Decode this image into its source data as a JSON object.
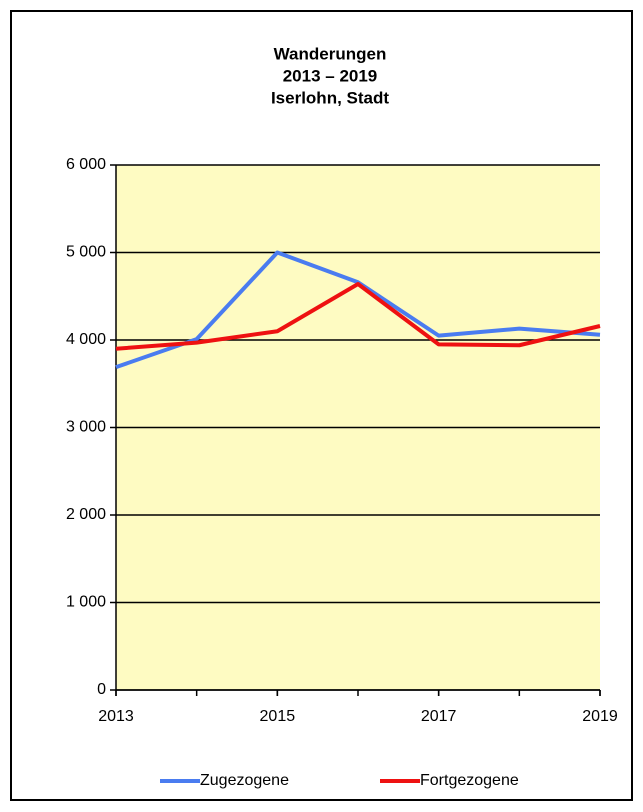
{
  "chart_data": {
    "type": "line",
    "title": [
      "Wanderungen",
      "2013 – 2019",
      "Iserlohn, Stadt"
    ],
    "x": [
      2013,
      2014,
      2015,
      2016,
      2017,
      2018,
      2019
    ],
    "series": [
      {
        "name": "Zugezogene",
        "color": "#4a7cf0",
        "values": [
          3690,
          4010,
          5000,
          4660,
          4050,
          4130,
          4060
        ]
      },
      {
        "name": "Fortgezogene",
        "color": "#ee1111",
        "values": [
          3900,
          3970,
          4100,
          4640,
          3950,
          3940,
          4160
        ]
      }
    ],
    "xlim": [
      2013,
      2019
    ],
    "xticks": [
      2013,
      2015,
      2017,
      2019
    ],
    "ylim": [
      0,
      6000
    ],
    "yticks": [
      0,
      {
        "value": 1000,
        "label": "1 000"
      },
      {
        "value": 2000,
        "label": "2 000"
      },
      {
        "value": 3000,
        "label": "3 000"
      },
      {
        "value": 4000,
        "label": "4 000"
      },
      {
        "value": 5000,
        "label": "5 000"
      },
      {
        "value": 6000,
        "label": "6 000"
      }
    ],
    "grid": true,
    "legend": "bottom",
    "plot_background": "#fefbc2"
  }
}
